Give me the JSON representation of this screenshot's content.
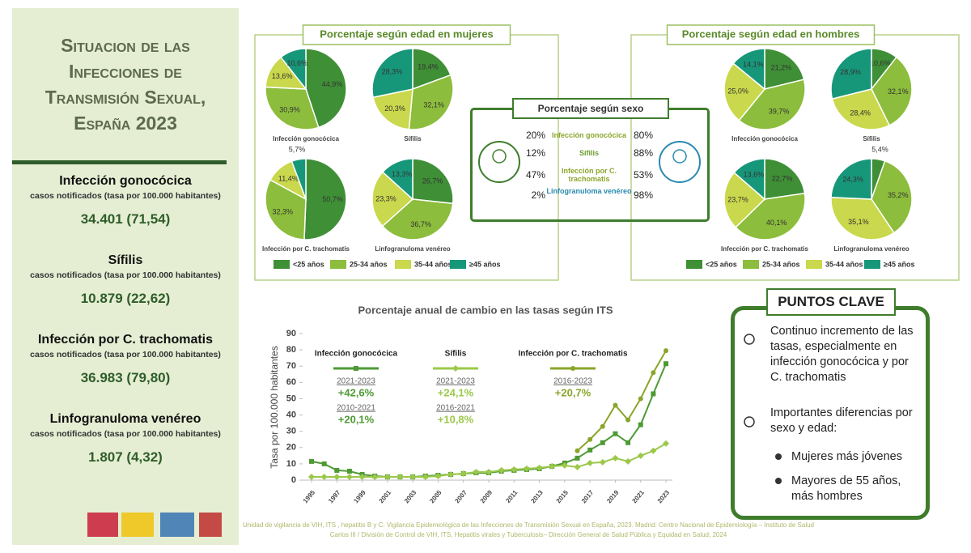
{
  "sidebar": {
    "title": "Situacion de las Infecciones de Transmisión Sexual, España 2023",
    "items": [
      {
        "name": "Infección gonocócica",
        "note": "casos notificados (tasa por 100.000 habitantes)",
        "value": "34.401 (71,54)"
      },
      {
        "name": "Sífilis",
        "note": "casos notificados (tasa por 100.000 habitantes)",
        "value": "10.879 (22,62)"
      },
      {
        "name": "Infección por C. trachomatis",
        "note": "casos notificados (tasa por 100.000 habitantes)",
        "value": "36.983 (79,80)"
      },
      {
        "name": "Linfogranuloma venéreo",
        "note": "casos notificados (tasa por 100.000 habitantes)",
        "value": "1.807 (4,32)"
      }
    ]
  },
  "chart_data": [
    {
      "type": "pie",
      "title": "Porcentaje según edad en mujeres",
      "categories": [
        "<25 años",
        "25-34 años",
        "35-44 años",
        "≥45 años"
      ],
      "colors": [
        "#3f8f36",
        "#8cbd3c",
        "#c9d84c",
        "#17977a"
      ],
      "pies": [
        {
          "label": "Infección gonocócica",
          "values": [
            44.9,
            30.9,
            13.6,
            10.6
          ],
          "value_labels": [
            "44,9%",
            "30,9%",
            "13,6%",
            "10,6%"
          ]
        },
        {
          "label": "Sífilis",
          "values": [
            19.4,
            32.1,
            20.3,
            28.3
          ],
          "value_labels": [
            "19,4%",
            "32,1%",
            "20,3%",
            "28,3%"
          ]
        },
        {
          "label": "Infección por C. trachomatis",
          "values": [
            50.7,
            32.3,
            11.4,
            5.7
          ],
          "value_labels": [
            "50,7%",
            "32,3%",
            "11,4%",
            "5,7%"
          ]
        },
        {
          "label": "Linfogranuloma venéreo",
          "values": [
            26.7,
            36.7,
            23.3,
            13.3
          ],
          "value_labels": [
            "26,7%",
            "36,7%",
            "23,3%",
            "13,3%"
          ]
        }
      ]
    },
    {
      "type": "pie",
      "title": "Porcentaje según edad en hombres",
      "categories": [
        "<25 años",
        "25-34 años",
        "35-44 años",
        "≥45 años"
      ],
      "colors": [
        "#3f8f36",
        "#8cbd3c",
        "#c9d84c",
        "#17977a"
      ],
      "pies": [
        {
          "label": "Infección gonocócica",
          "values": [
            21.2,
            39.7,
            25.0,
            14.1
          ],
          "value_labels": [
            "21,2%",
            "39,7%",
            "25,0%",
            "14,1%"
          ]
        },
        {
          "label": "Sífilis",
          "values": [
            10.6,
            32.1,
            28.4,
            28.9
          ],
          "value_labels": [
            "10,6%",
            "32,1%",
            "28,4%",
            "28,9%"
          ]
        },
        {
          "label": "Infección por C. trachomatis",
          "values": [
            22.7,
            40.1,
            23.7,
            13.6
          ],
          "value_labels": [
            "22,7%",
            "40,1%",
            "23,7%",
            "13,6%"
          ]
        },
        {
          "label": "Linfogranuloma venéreo",
          "values": [
            5.4,
            35.2,
            35.1,
            24.3
          ],
          "value_labels": [
            "5,4%",
            "35,2%",
            "35,1%",
            "24,3%"
          ]
        }
      ]
    },
    {
      "type": "line",
      "title": "Porcentaje anual de cambio en las tasas según ITS",
      "y_label": "Tasa por 100.000 habitantes",
      "x": [
        1995,
        1996,
        1997,
        1998,
        1999,
        2000,
        2001,
        2002,
        2003,
        2004,
        2005,
        2006,
        2007,
        2008,
        2009,
        2010,
        2011,
        2012,
        2013,
        2014,
        2015,
        2016,
        2017,
        2018,
        2019,
        2020,
        2021,
        2022,
        2023
      ],
      "xlim": [
        1995,
        2023
      ],
      "xticks": [
        1995,
        1997,
        1999,
        2001,
        2003,
        2005,
        2007,
        2009,
        2011,
        2013,
        2015,
        2017,
        2019,
        2021,
        2023
      ],
      "ylim": [
        0,
        90
      ],
      "yticks": [
        0,
        10,
        20,
        30,
        40,
        50,
        60,
        70,
        80,
        90
      ],
      "series": [
        {
          "name": "Infección gonocócica",
          "color": "#4e9a35",
          "marker": "square",
          "values": [
            11.5,
            10,
            6,
            5.5,
            3.5,
            2.5,
            2,
            2,
            2,
            2.5,
            3,
            3.5,
            4,
            4.5,
            4.5,
            5.5,
            6,
            6.5,
            7,
            8.5,
            10.5,
            13.5,
            18.5,
            23,
            28.5,
            23,
            34,
            53,
            71.5
          ],
          "changes": [
            {
              "period": "2021-2023",
              "change": "+42,6%"
            },
            {
              "period": "2010-2021",
              "change": "+20,1%"
            }
          ]
        },
        {
          "name": "Sífilis",
          "color": "#9cc84a",
          "marker": "diamond",
          "values": [
            2,
            2,
            2,
            2,
            2,
            2,
            2,
            2,
            2,
            2,
            2.5,
            3.5,
            4,
            5,
            5,
            6,
            6.5,
            7,
            7.5,
            8.5,
            9,
            8,
            10.5,
            11,
            13.5,
            11.5,
            15,
            18,
            22.5
          ],
          "changes": [
            {
              "period": "2021-2023",
              "change": "+24,1%"
            },
            {
              "period": "2016-2021",
              "change": "+10,8%"
            }
          ]
        },
        {
          "name": "Infección por C. trachomatis",
          "color": "#8aa52a",
          "marker": "circle",
          "values": [
            null,
            null,
            null,
            null,
            null,
            null,
            null,
            null,
            null,
            null,
            null,
            null,
            null,
            null,
            null,
            null,
            null,
            null,
            null,
            null,
            null,
            18,
            25,
            33,
            46,
            37,
            50,
            66,
            79.5
          ],
          "changes": [
            {
              "period": "2016-2023",
              "change": "+20,7%"
            }
          ]
        }
      ]
    }
  ],
  "sex_table": {
    "title": "Porcentaje según sexo",
    "rows": [
      [
        "20%",
        "Infección gonocócica",
        "80%"
      ],
      [
        "12%",
        "Sífilis",
        "88%"
      ],
      [
        "47%",
        "Infección por C. trachomatis",
        "53%"
      ],
      [
        "2%",
        "Linfogranuloma venéreo",
        "98%"
      ]
    ]
  },
  "key_points": {
    "title": "PUNTOS CLAVE",
    "items": [
      "Continuo incremento de las tasas, especialmente en infección gonocócica y por C. trachomatis",
      "Importantes diferencias por sexo y edad:"
    ],
    "subitems": [
      "Mujeres más jóvenes",
      "Mayores de 55 años, más hombres"
    ]
  },
  "footer": "Unidad de vigilancia de VIH, ITS , hepatitis B y C. Vigilancia Epidemiológica de las Infecciones de Transmisión Sexual en España, 2023. Madrid: Centro Nacional de Epidemiología – Instituto de Salud Carlos III / División de Control de VIH, ITS, Hepatitis virales y Tuberculosis– Dirección General de Salud Pública y Equidad en Salud; 2024"
}
